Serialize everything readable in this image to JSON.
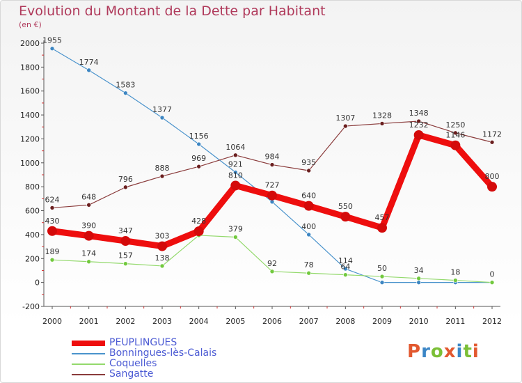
{
  "title": "Evolution du Montant de la Dette par Habitant",
  "subtitle": "(en €)",
  "logo": {
    "text": "Proxiti",
    "colors": [
      "#e2582f",
      "#3b86c6",
      "#7bbf36",
      "#e2582f",
      "#3b86c6",
      "#7bbf36",
      "#e2582f"
    ]
  },
  "chart_data": {
    "type": "line",
    "title": "Evolution du Montant de la Dette par Habitant",
    "ylabel": "(en €)",
    "xlabel": "",
    "x": [
      "2000",
      "2001",
      "2002",
      "2003",
      "2004",
      "2005",
      "2006",
      "2007",
      "2008",
      "2009",
      "2010",
      "2011",
      "2012"
    ],
    "ylim": [
      -200,
      2000
    ],
    "yticks": [
      "-200",
      "0",
      "200",
      "400",
      "600",
      "800",
      "1000",
      "1200",
      "1400",
      "1600",
      "1800",
      "2000"
    ],
    "grid": false,
    "legend_position": "bottom-left",
    "series": [
      {
        "name": "Bonningues-lès-Calais",
        "color": "#4a93cc",
        "point_color": "#3d86c2",
        "values": [
          1955,
          1774,
          1583,
          1377,
          1156,
          921,
          674,
          400,
          114,
          0,
          0,
          0,
          0
        ],
        "labels": [
          "1955",
          "1774",
          "1583",
          "1377",
          "1156",
          "921",
          "",
          "400",
          "114",
          "",
          "",
          "",
          ""
        ]
      },
      {
        "name": "Coquelles",
        "color": "#93d96c",
        "point_color": "#72c93e",
        "values": [
          189,
          174,
          157,
          138,
          394,
          379,
          92,
          78,
          64,
          50,
          34,
          18,
          0
        ],
        "labels": [
          "189",
          "174",
          "157",
          "138",
          "",
          "379",
          "92",
          "78",
          "64",
          "50",
          "34",
          "18",
          "0"
        ]
      },
      {
        "name": "Sangatte",
        "color": "#8a3b3b",
        "point_color": "#6a1f1f",
        "values": [
          624,
          648,
          796,
          888,
          969,
          1064,
          984,
          935,
          1307,
          1328,
          1348,
          1250,
          1172
        ],
        "labels": [
          "624",
          "648",
          "796",
          "888",
          "969",
          "1064",
          "984",
          "935",
          "1307",
          "1328",
          "1348",
          "1250",
          "1172"
        ]
      },
      {
        "name": "PEUPLINGUES",
        "color": "#ee0e0e",
        "point_color": "#d40a0a",
        "values": [
          430,
          390,
          347,
          303,
          428,
          810,
          727,
          640,
          550,
          457,
          1232,
          1146,
          800
        ],
        "labels": [
          "430",
          "390",
          "347",
          "303",
          "428",
          "810",
          "727",
          "640",
          "550",
          "457",
          "1232",
          "1146",
          "800"
        ]
      }
    ],
    "legend": [
      "PEUPLINGUES",
      "Bonningues-lès-Calais",
      "Coquelles",
      "Sangatte"
    ]
  }
}
